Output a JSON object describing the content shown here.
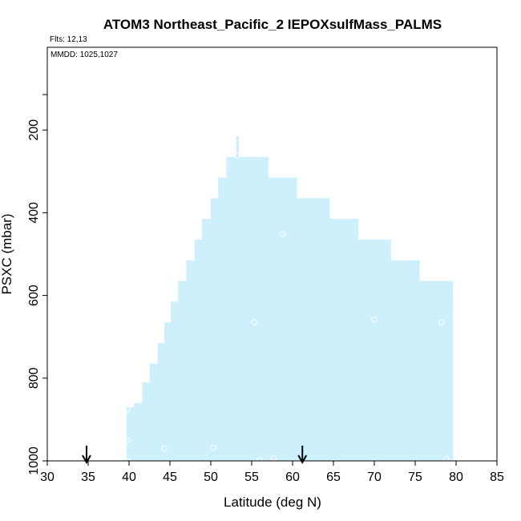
{
  "chart_data": {
    "type": "area",
    "title": "ATOM3 Northeast_Pacific_2 IEPOXsulfMass_PALMS",
    "flights_note": "Flts: 12,13",
    "mmdd_note": "MMDD: 1025,1027",
    "xlabel": "Latitude (deg N)",
    "ylabel": "PSXC (mbar)",
    "xlim": [
      30,
      85
    ],
    "ylim": [
      1000,
      0
    ],
    "xticks": [
      "30",
      "35",
      "40",
      "45",
      "50",
      "55",
      "60",
      "65",
      "70",
      "75",
      "80",
      "85"
    ],
    "yticks": [
      "200",
      "400",
      "600",
      "800",
      "1000"
    ],
    "grid": false,
    "fill_color": "#cdf0fc",
    "point_color": "#ffffff",
    "arrow_color": "#000000",
    "coverage": [
      {
        "lat0": 39.7,
        "lat1": 40.6,
        "top": 870
      },
      {
        "lat0": 40.6,
        "lat1": 41.6,
        "top": 860
      },
      {
        "lat0": 41.6,
        "lat1": 42.5,
        "top": 810
      },
      {
        "lat0": 42.5,
        "lat1": 43.5,
        "top": 765
      },
      {
        "lat0": 43.5,
        "lat1": 44.3,
        "top": 715
      },
      {
        "lat0": 44.3,
        "lat1": 45.1,
        "top": 665
      },
      {
        "lat0": 45.1,
        "lat1": 46.0,
        "top": 615
      },
      {
        "lat0": 46.0,
        "lat1": 47.0,
        "top": 565
      },
      {
        "lat0": 47.0,
        "lat1": 48.0,
        "top": 515
      },
      {
        "lat0": 48.0,
        "lat1": 48.9,
        "top": 465
      },
      {
        "lat0": 48.9,
        "lat1": 50.0,
        "top": 415
      },
      {
        "lat0": 50.0,
        "lat1": 50.9,
        "top": 365
      },
      {
        "lat0": 50.9,
        "lat1": 51.9,
        "top": 315
      },
      {
        "lat0": 51.9,
        "lat1": 53.1,
        "top": 265
      },
      {
        "lat0": 53.1,
        "lat1": 53.4,
        "top": 215
      },
      {
        "lat0": 53.4,
        "lat1": 57.0,
        "top": 265
      },
      {
        "lat0": 57.0,
        "lat1": 60.5,
        "top": 315
      },
      {
        "lat0": 60.5,
        "lat1": 64.5,
        "top": 365
      },
      {
        "lat0": 64.5,
        "lat1": 68.0,
        "top": 415
      },
      {
        "lat0": 68.0,
        "lat1": 72.0,
        "top": 465
      },
      {
        "lat0": 72.0,
        "lat1": 75.5,
        "top": 515
      },
      {
        "lat0": 75.5,
        "lat1": 79.3,
        "top": 565
      },
      {
        "lat0": 79.3,
        "lat1": 79.6,
        "top": 565
      }
    ],
    "coverage_bottom_right": [
      {
        "lat0": 79.0,
        "lat1": 79.6,
        "top": 615
      }
    ],
    "points": [
      {
        "lat": 39.8,
        "p": 875
      },
      {
        "lat": 39.8,
        "p": 950
      },
      {
        "lat": 39.9,
        "p": 1000
      },
      {
        "lat": 44.3,
        "p": 970
      },
      {
        "lat": 50.3,
        "p": 968
      },
      {
        "lat": 53.2,
        "p": 262
      },
      {
        "lat": 55.3,
        "p": 665
      },
      {
        "lat": 56.0,
        "p": 998
      },
      {
        "lat": 57.7,
        "p": 993
      },
      {
        "lat": 58.8,
        "p": 452
      },
      {
        "lat": 70.0,
        "p": 658
      },
      {
        "lat": 78.2,
        "p": 665
      },
      {
        "lat": 78.8,
        "p": 995
      }
    ],
    "arrows": [
      34.8,
      61.2
    ]
  }
}
